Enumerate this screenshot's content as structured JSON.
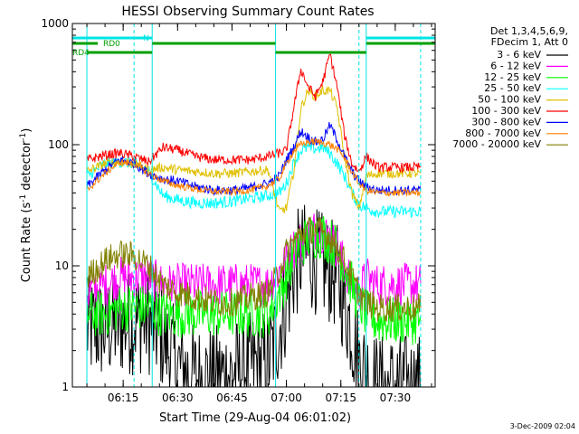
{
  "chart_data": {
    "type": "line",
    "title": "HESSI Observing Summary Count Rates",
    "xlabel": "Start Time (29-Aug-04 06:01:02)",
    "ylabel_main": "Count Rate (s",
    "ylabel_sup": "-1",
    "ylabel_mid": " detector",
    "ylabel_sup2": "-1",
    "ylabel_end": ")",
    "y_scale": "log",
    "ylim": [
      1,
      1000
    ],
    "xlim": [
      "06:01",
      "07:41"
    ],
    "x_ticks": [
      "06:15",
      "06:30",
      "06:45",
      "07:00",
      "07:15",
      "07:30"
    ],
    "y_ticks": [
      "1",
      "10",
      "100",
      "1000"
    ],
    "legend_header": [
      "Det 1,3,4,5,6,9,",
      "FDecim 1, Att 0"
    ],
    "legend_position": "right",
    "date_stamp": "3-Dec-2009 02:04",
    "flags": [
      {
        "name": "N",
        "color": "#00e5e5",
        "spans": [
          [
            "06:01",
            "06:23"
          ],
          [
            "07:22",
            "07:41"
          ]
        ]
      },
      {
        "name": "RD0",
        "color": "#00a000",
        "spans": [
          [
            "06:01",
            "06:08"
          ],
          [
            "06:23",
            "06:57"
          ],
          [
            "07:22",
            "07:41"
          ]
        ]
      },
      {
        "name": "RD4",
        "color": "#00a000",
        "spans": [
          [
            "06:05",
            "06:23"
          ],
          [
            "06:57",
            "07:22"
          ]
        ]
      }
    ],
    "eclipse_markers": [
      "06:05",
      "06:23",
      "06:57",
      "07:22"
    ],
    "dashed_markers": [
      "06:18",
      "07:20",
      "07:37"
    ],
    "times": [
      "06:05",
      "06:10",
      "06:14",
      "06:18",
      "06:22",
      "06:26",
      "06:30",
      "06:35",
      "06:40",
      "06:45",
      "06:50",
      "06:55",
      "06:58",
      "07:00",
      "07:02",
      "07:04",
      "07:06",
      "07:08",
      "07:10",
      "07:12",
      "07:14",
      "07:16",
      "07:18",
      "07:20",
      "07:22",
      "07:25",
      "07:28",
      "07:31",
      "07:34",
      "07:37"
    ],
    "series": [
      {
        "name": "3 - 6 keV",
        "color": "#000000",
        "values": [
          3,
          3,
          3.3,
          3.5,
          3.5,
          2.5,
          1.5,
          1.2,
          1.2,
          1.3,
          1.5,
          1.6,
          3,
          5,
          9,
          12,
          12,
          11,
          10,
          9,
          8,
          5,
          3,
          1.6,
          1.3,
          1,
          1,
          1,
          1,
          1
        ]
      },
      {
        "name": "6 - 12 keV",
        "color": "#ff00ff",
        "values": [
          6,
          7,
          8,
          8,
          8,
          7,
          7,
          7,
          7,
          7,
          7,
          7,
          9,
          11,
          14,
          16,
          18,
          20,
          19,
          17,
          14,
          10,
          7,
          6,
          8,
          7,
          7,
          7,
          7,
          7
        ]
      },
      {
        "name": "12 - 25 keV",
        "color": "#00ff00",
        "values": [
          4,
          4,
          4.5,
          4.5,
          4.5,
          4,
          4,
          4,
          4,
          4,
          4,
          4,
          6,
          8,
          12,
          15,
          17,
          18,
          18,
          16,
          14,
          10,
          7,
          5,
          4,
          3.5,
          3.5,
          3.5,
          3.5,
          3.5
        ]
      },
      {
        "name": "25 - 50 keV",
        "color": "#00ffff",
        "values": [
          55,
          70,
          72,
          70,
          60,
          38,
          35,
          33,
          33,
          34,
          36,
          38,
          40,
          48,
          70,
          90,
          95,
          92,
          95,
          85,
          70,
          55,
          40,
          32,
          30,
          28,
          28,
          28,
          28,
          28
        ]
      },
      {
        "name": "50 - 100 keV",
        "color": "#e0c000",
        "values": [
          60,
          70,
          72,
          70,
          62,
          65,
          62,
          60,
          58,
          58,
          60,
          62,
          28,
          30,
          60,
          200,
          280,
          250,
          280,
          280,
          200,
          80,
          40,
          30,
          55,
          58,
          58,
          58,
          58,
          58
        ]
      },
      {
        "name": "100 - 300 keV",
        "color": "#ff0000",
        "values": [
          75,
          82,
          85,
          80,
          72,
          95,
          90,
          80,
          75,
          75,
          75,
          80,
          85,
          90,
          200,
          420,
          300,
          250,
          330,
          560,
          300,
          120,
          70,
          60,
          80,
          65,
          65,
          65,
          65,
          65
        ]
      },
      {
        "name": "300 - 800 keV",
        "color": "#0000ff",
        "values": [
          45,
          62,
          75,
          70,
          58,
          52,
          50,
          45,
          42,
          42,
          44,
          48,
          55,
          75,
          95,
          130,
          115,
          105,
          110,
          145,
          110,
          80,
          60,
          50,
          45,
          42,
          42,
          42,
          42,
          42
        ]
      },
      {
        "name": "800 - 7000 keV",
        "color": "#ff8000",
        "values": [
          42,
          58,
          72,
          70,
          58,
          50,
          46,
          43,
          41,
          41,
          42,
          46,
          52,
          70,
          88,
          100,
          105,
          106,
          104,
          100,
          92,
          78,
          60,
          48,
          42,
          40,
          40,
          40,
          40,
          40
        ]
      },
      {
        "name": "7000 - 20000 keV",
        "color": "#808000",
        "values": [
          8,
          11,
          12.5,
          12,
          10,
          7,
          6,
          5.5,
          5,
          5,
          5.5,
          6,
          9,
          13,
          16,
          18,
          20,
          20,
          19,
          17,
          14,
          11,
          8,
          6,
          5,
          4.5,
          4.5,
          4.5,
          4.5,
          4.5
        ]
      }
    ]
  }
}
